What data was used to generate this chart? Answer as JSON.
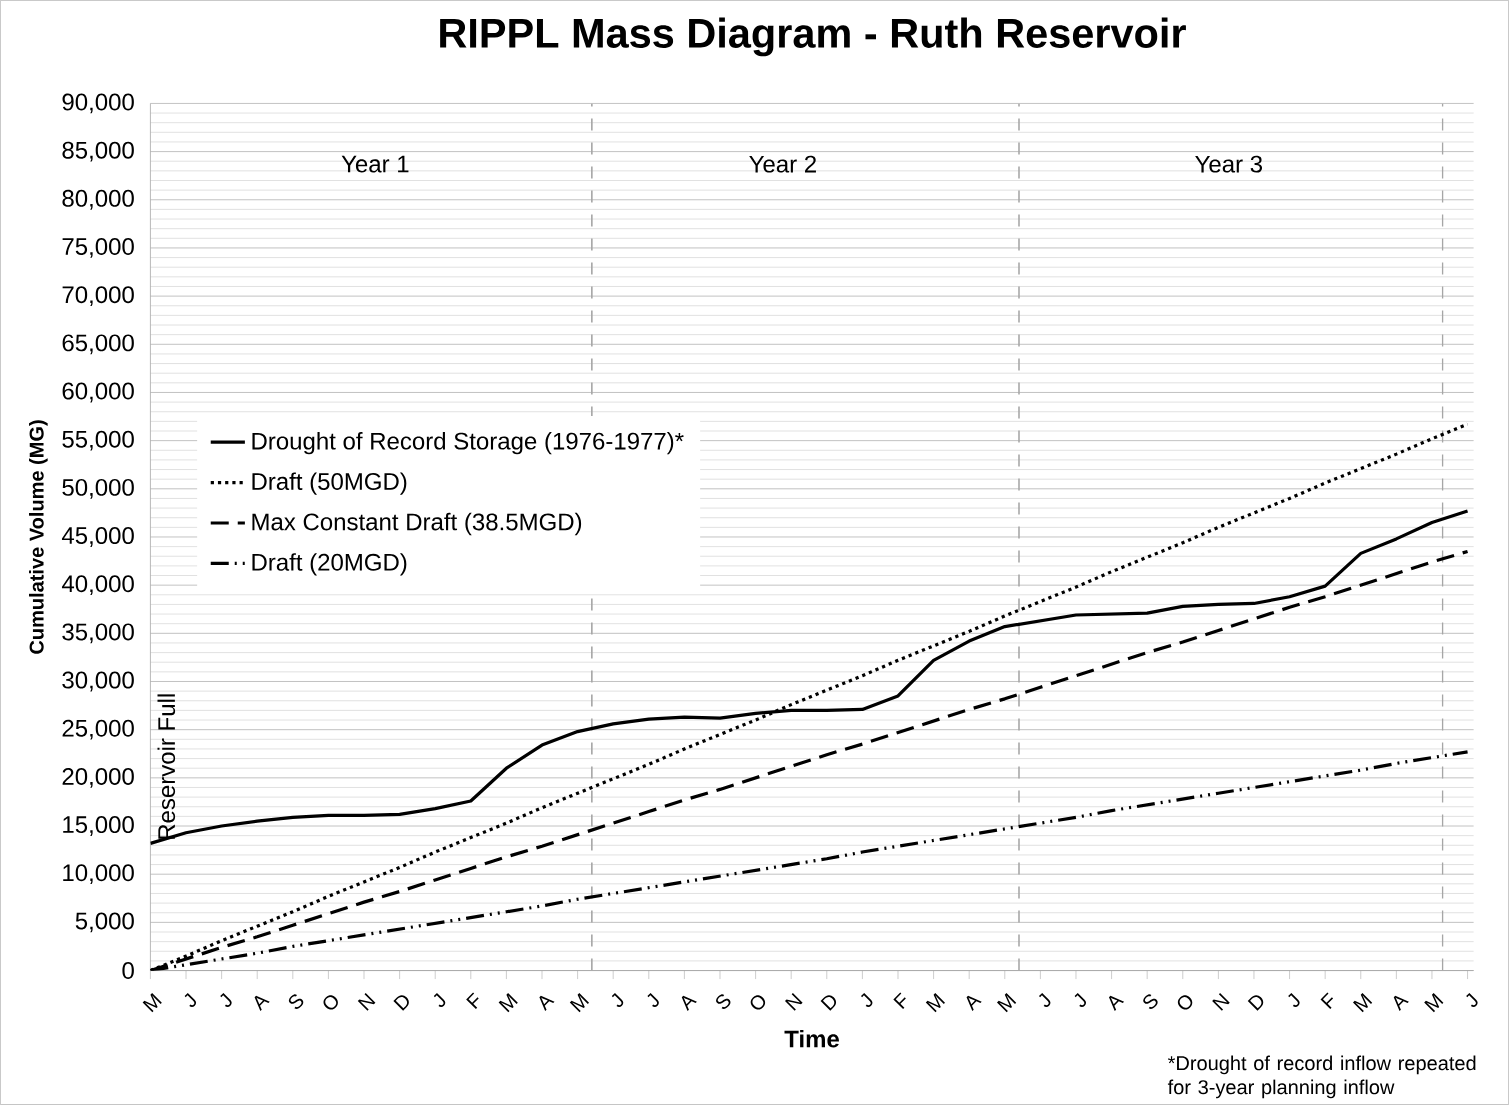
{
  "chart_data": {
    "type": "line",
    "title": "RIPPL Mass Diagram - Ruth Reservoir",
    "xlabel": "Time",
    "ylabel": "Cumulative Volume (MG)",
    "categories": [
      "M",
      "J",
      "J",
      "A",
      "S",
      "O",
      "N",
      "D",
      "J",
      "F",
      "M",
      "A",
      "M",
      "J",
      "J",
      "A",
      "S",
      "O",
      "N",
      "D",
      "J",
      "F",
      "M",
      "A",
      "M",
      "J",
      "J",
      "A",
      "S",
      "O",
      "N",
      "D",
      "J",
      "F",
      "M",
      "A",
      "M",
      "J"
    ],
    "ylim": [
      0,
      90000
    ],
    "yticks": [
      {
        "value": 0,
        "label": "0"
      },
      {
        "value": 5000,
        "label": "5,000"
      },
      {
        "value": 10000,
        "label": "10,000"
      },
      {
        "value": 15000,
        "label": "15,000"
      },
      {
        "value": 20000,
        "label": "20,000"
      },
      {
        "value": 25000,
        "label": "25,000"
      },
      {
        "value": 30000,
        "label": "30,000"
      },
      {
        "value": 35000,
        "label": "35,000"
      },
      {
        "value": 40000,
        "label": "40,000"
      },
      {
        "value": 45000,
        "label": "45,000"
      },
      {
        "value": 50000,
        "label": "50,000"
      },
      {
        "value": 55000,
        "label": "55,000"
      },
      {
        "value": 60000,
        "label": "60,000"
      },
      {
        "value": 65000,
        "label": "65,000"
      },
      {
        "value": 70000,
        "label": "70,000"
      },
      {
        "value": 75000,
        "label": "75,000"
      },
      {
        "value": 80000,
        "label": "80,000"
      },
      {
        "value": 85000,
        "label": "85,000"
      },
      {
        "value": 90000,
        "label": "90,000"
      }
    ],
    "grid": "y",
    "legend": "left",
    "series": [
      {
        "name": "Drought of Record Storage (1976-1977)*",
        "color": "#000000",
        "line_style": "solid",
        "values": [
          13200,
          14300,
          15000,
          15500,
          15900,
          16100,
          16100,
          16200,
          16800,
          17600,
          21000,
          23400,
          24800,
          25600,
          26100,
          26300,
          26200,
          26700,
          27000,
          27000,
          27100,
          28500,
          32200,
          34200,
          35700,
          36300,
          36900,
          37000,
          37100,
          37800,
          38000,
          38100,
          38800,
          39900,
          43300,
          44800,
          46500,
          47700
        ]
      },
      {
        "name": "Draft (50MGD)",
        "color": "#000000",
        "line_style": "dotted",
        "values": [
          0,
          1500,
          3100,
          4600,
          6100,
          7700,
          9200,
          10700,
          12300,
          13800,
          15300,
          16900,
          18400,
          19900,
          21400,
          23000,
          24500,
          26000,
          27600,
          29100,
          30600,
          32200,
          33700,
          35200,
          36800,
          38300,
          39800,
          41400,
          42900,
          44400,
          46000,
          47500,
          49000,
          50600,
          52100,
          53600,
          55200,
          56700
        ]
      },
      {
        "name": "Max Constant Draft (38.5MGD)",
        "color": "#000000",
        "line_style": "dashed",
        "values": [
          0,
          1200,
          2400,
          3500,
          4700,
          5900,
          7100,
          8200,
          9400,
          10600,
          11800,
          12900,
          14100,
          15300,
          16500,
          17700,
          18800,
          20000,
          21200,
          22400,
          23500,
          24700,
          25900,
          27100,
          28200,
          29400,
          30600,
          31800,
          33000,
          34100,
          35300,
          36500,
          37700,
          38800,
          40000,
          41200,
          42400,
          43500
        ]
      },
      {
        "name": "Draft (20MGD)",
        "color": "#000000",
        "line_style": "dashdot",
        "values": [
          0,
          600,
          1200,
          1800,
          2500,
          3100,
          3700,
          4300,
          4900,
          5500,
          6100,
          6700,
          7400,
          8000,
          8600,
          9200,
          9800,
          10400,
          11000,
          11600,
          12300,
          12900,
          13500,
          14100,
          14700,
          15300,
          15900,
          16600,
          17200,
          17800,
          18400,
          19000,
          19600,
          20200,
          20800,
          21500,
          22100,
          22700
        ]
      }
    ],
    "annotations": [
      "Year 1",
      "Year 2",
      "Year 3",
      "Reservoir Full",
      "*Drought of record inflow repeated for 3-year planning inflow"
    ]
  }
}
